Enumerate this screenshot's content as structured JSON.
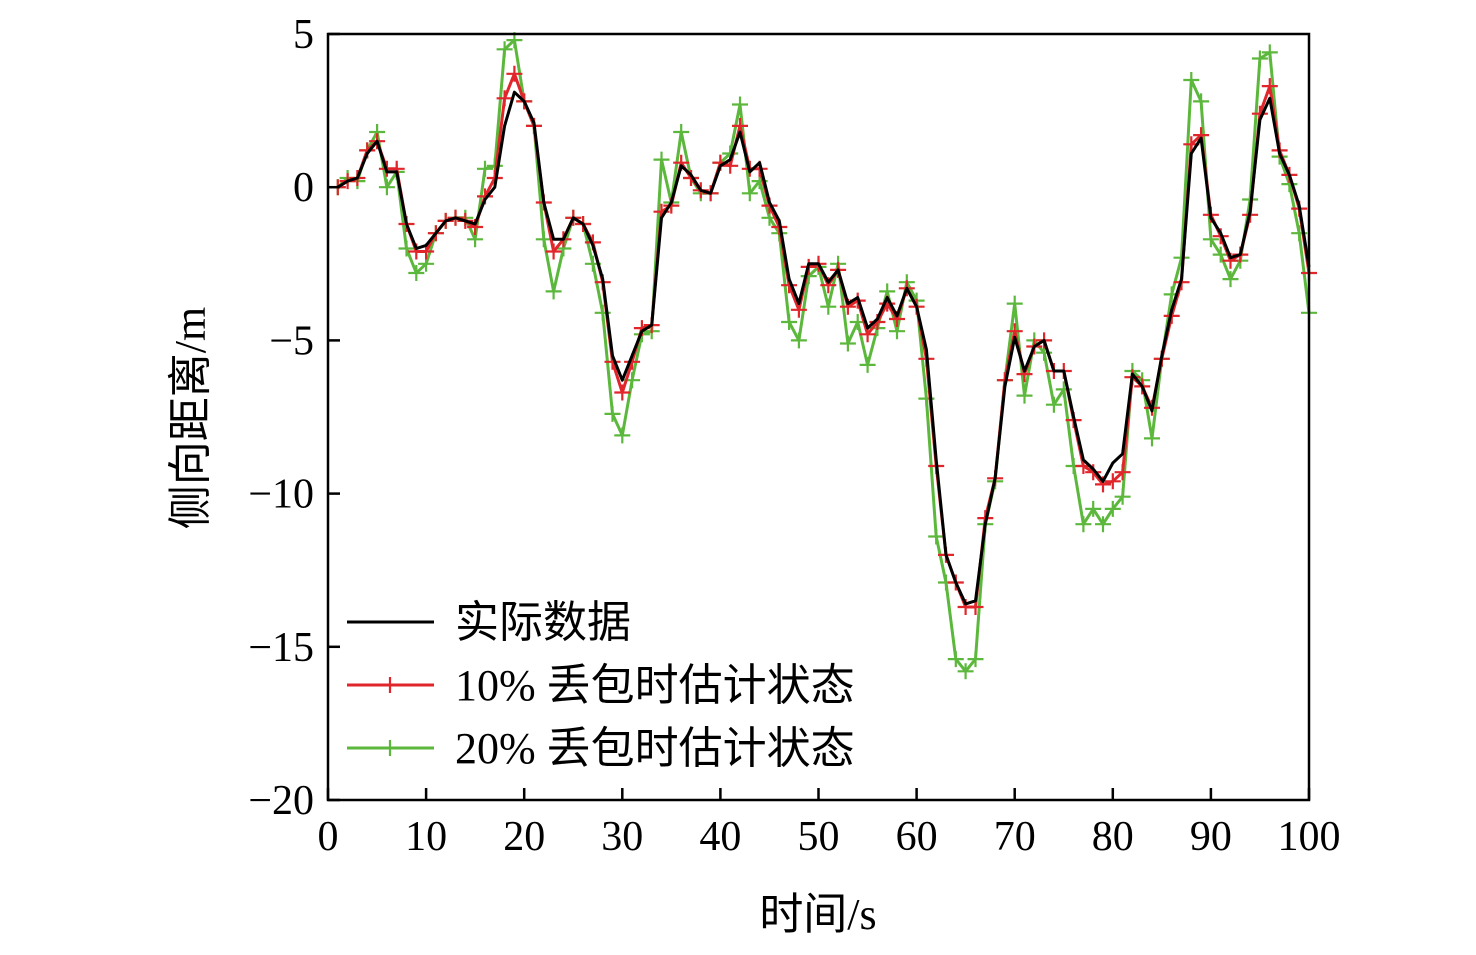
{
  "chart_data": {
    "type": "line",
    "title": "",
    "xlabel": "时间/s",
    "ylabel": "侧向距离/m",
    "xlim": [
      0,
      100
    ],
    "ylim": [
      -20,
      5
    ],
    "xticks": [
      0,
      10,
      20,
      30,
      40,
      50,
      60,
      70,
      80,
      90,
      100
    ],
    "yticks": [
      5,
      0,
      -5,
      -10,
      -15,
      -20
    ],
    "xtick_labels": [
      "0",
      "10",
      "20",
      "30",
      "40",
      "50",
      "60",
      "70",
      "80",
      "90",
      "100"
    ],
    "ytick_labels": [
      "5",
      "0",
      "−5",
      "−10",
      "−15",
      "−20"
    ],
    "grid": false,
    "legend_position": "lower-left",
    "x": [
      1,
      2,
      3,
      4,
      5,
      6,
      7,
      8,
      9,
      10,
      11,
      12,
      13,
      14,
      15,
      16,
      17,
      18,
      19,
      20,
      21,
      22,
      23,
      24,
      25,
      26,
      27,
      28,
      29,
      30,
      31,
      32,
      33,
      34,
      35,
      36,
      37,
      38,
      39,
      40,
      41,
      42,
      43,
      44,
      45,
      46,
      47,
      48,
      49,
      50,
      51,
      52,
      53,
      54,
      55,
      56,
      57,
      58,
      59,
      60,
      61,
      62,
      63,
      64,
      65,
      66,
      67,
      68,
      69,
      70,
      71,
      72,
      73,
      74,
      75,
      76,
      77,
      78,
      79,
      80,
      81,
      82,
      83,
      84,
      85,
      86,
      87,
      88,
      89,
      90,
      91,
      92,
      93,
      94,
      95,
      96,
      97,
      98,
      99,
      100
    ],
    "series": [
      {
        "name": "实际数据",
        "color": "#000000",
        "marker": "none",
        "values": [
          0,
          0.2,
          0.3,
          1.1,
          1.5,
          0.5,
          0.5,
          -1.2,
          -2,
          -1.9,
          -1.5,
          -1.1,
          -1,
          -1.1,
          -1.2,
          -0.4,
          0,
          2,
          3.1,
          2.8,
          2.1,
          -0.5,
          -1.7,
          -1.7,
          -1,
          -1.2,
          -1.9,
          -3,
          -5.5,
          -6.3,
          -5.5,
          -4.7,
          -4.5,
          -1,
          -0.5,
          0.7,
          0.4,
          -0.1,
          -0.2,
          0.7,
          0.9,
          1.8,
          0.5,
          0.8,
          -0.5,
          -1.1,
          -3,
          -3.8,
          -2.5,
          -2.5,
          -3.1,
          -2.7,
          -3.8,
          -3.6,
          -4.6,
          -4.3,
          -3.6,
          -4.2,
          -3.3,
          -3.9,
          -5.3,
          -8.9,
          -12,
          -12.9,
          -13.6,
          -13.5,
          -11,
          -9.5,
          -6.5,
          -4.9,
          -6,
          -5.2,
          -5,
          -6,
          -6,
          -7.5,
          -8.9,
          -9.2,
          -9.6,
          -9,
          -8.7,
          -6.1,
          -6.5,
          -7.3,
          -5.5,
          -4,
          -3,
          1.1,
          1.6,
          -1,
          -1.5,
          -2.3,
          -2.2,
          -0.8,
          2.2,
          2.9,
          1.1,
          0.4,
          -0.6,
          -2.6
        ]
      },
      {
        "name": "10% 丢包时估计状态",
        "color": "#e0262b",
        "marker": "+",
        "values": [
          0,
          0.2,
          0.3,
          1.2,
          1.5,
          0.6,
          0.6,
          -1.2,
          -2.1,
          -2.1,
          -1.5,
          -1.1,
          -1,
          -1.1,
          -1.3,
          -0.3,
          0.3,
          2.9,
          3.7,
          2.8,
          2,
          -0.5,
          -2.1,
          -1.7,
          -1,
          -1.2,
          -1.8,
          -3.1,
          -5.7,
          -6.7,
          -5.7,
          -4.6,
          -4.5,
          -0.8,
          -0.6,
          0.8,
          0.3,
          -0.1,
          -0.2,
          0.8,
          0.7,
          2,
          0.6,
          0.6,
          -0.6,
          -1.3,
          -3.2,
          -4,
          -2.6,
          -2.5,
          -3.2,
          -2.7,
          -3.9,
          -3.7,
          -4.8,
          -4.4,
          -3.8,
          -4.3,
          -3.3,
          -3.9,
          -5.6,
          -9.1,
          -12,
          -12.9,
          -13.7,
          -13.7,
          -10.8,
          -9.5,
          -6.3,
          -4.7,
          -6.1,
          -5.2,
          -5,
          -6,
          -6,
          -7.6,
          -9.1,
          -9.3,
          -9.7,
          -9.6,
          -9.3,
          -6.2,
          -6.5,
          -7.2,
          -5.6,
          -4.2,
          -3.1,
          1.4,
          1.7,
          -0.9,
          -1.6,
          -2.4,
          -2.2,
          -0.9,
          2.4,
          3.3,
          1.2,
          0.4,
          -0.7,
          -2.8
        ]
      },
      {
        "name": "20% 丢包时估计状态",
        "color": "#5cb83c",
        "marker": "+",
        "values": [
          0,
          0.3,
          0.2,
          1.2,
          1.8,
          0,
          0.5,
          -2,
          -2.8,
          -2.5,
          -1.5,
          -1.1,
          -1,
          -1,
          -1.7,
          0.6,
          0.7,
          4.5,
          4.8,
          2.8,
          2,
          -1.7,
          -3.4,
          -2,
          -1,
          -1.2,
          -2.5,
          -4.1,
          -7.4,
          -8.1,
          -6.3,
          -4.8,
          -4.7,
          0.9,
          -0.5,
          1.8,
          0.3,
          -0.2,
          -0.2,
          0.8,
          1.1,
          2.7,
          -0.2,
          0.2,
          -1,
          -1.5,
          -4.4,
          -5,
          -2.9,
          -2.6,
          -3.9,
          -2.5,
          -5.1,
          -4.4,
          -5.8,
          -4.6,
          -3.4,
          -4.7,
          -3.1,
          -3.7,
          -6.9,
          -11.4,
          -12.9,
          -15.4,
          -15.8,
          -15.4,
          -11,
          -9.6,
          -6.3,
          -3.8,
          -6.8,
          -5,
          -5.4,
          -7.1,
          -6.6,
          -9.1,
          -11,
          -10.5,
          -11,
          -10.5,
          -10.1,
          -6,
          -6.3,
          -8.2,
          -5.6,
          -3.5,
          -2.3,
          3.5,
          2.8,
          -1.7,
          -2.2,
          -3,
          -2.4,
          -0.4,
          4.2,
          4.4,
          1,
          0.1,
          -1.5,
          -4.1
        ]
      }
    ]
  }
}
